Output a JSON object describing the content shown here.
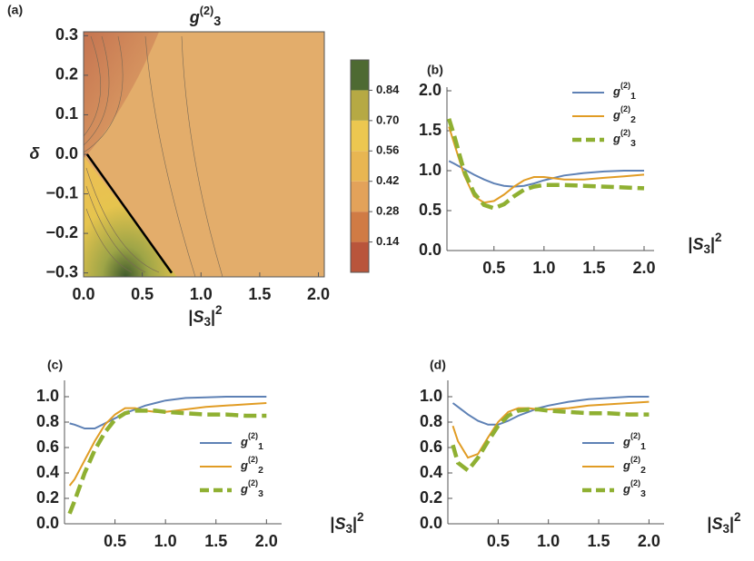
{
  "chart_data": [
    {
      "type": "contour",
      "panel": "(a)",
      "title": "g(2)3",
      "x_label": "|S3|2",
      "y_label": "δ",
      "xlim": [
        0,
        2.05
      ],
      "ylim": [
        -0.31,
        0.31
      ],
      "xticks": [
        {
          "value": 0,
          "label": "0.0"
        },
        0.5,
        {
          "value": 1,
          "label": "1.0"
        },
        1.5,
        {
          "value": 2,
          "label": "2.0"
        }
      ],
      "yticks": [
        {
          "value": -0.3,
          "label": "−0.3"
        },
        {
          "value": -0.2,
          "label": "−0.2"
        },
        {
          "value": -0.1,
          "label": "−0.1"
        },
        {
          "value": 0,
          "label": "0.0"
        },
        0.1,
        0.2,
        0.3
      ],
      "series": [
        {
          "color": "#000000",
          "x": [
            0.03,
            0.75
          ],
          "values": [
            0.0,
            -0.3
          ]
        }
      ],
      "colorbar": {
        "lim": [
          0,
          0.98
        ],
        "ticks": [
          0.14,
          {
            "value": 0.28,
            "label": "0.28"
          },
          0.42,
          0.56,
          {
            "value": 0.7,
            "label": "0.70"
          },
          0.84
        ],
        "colors": [
          "#b9553b",
          "#d07b45",
          "#e3a25a",
          "#e8b652",
          "#ecc750",
          "#b6a944",
          "#4e6a32"
        ]
      }
    },
    {
      "type": "line",
      "panel": "(b)",
      "x_label": "|S3|2",
      "legend": "upper right",
      "xlim": [
        0.03,
        2.1
      ],
      "ylim": [
        0,
        2.0
      ],
      "xticks": [
        0.5,
        {
          "value": 1,
          "label": "1.0"
        },
        1.5,
        {
          "value": 2,
          "label": "2.0"
        }
      ],
      "yticks": [
        {
          "value": 0,
          "label": "0.0"
        },
        0.5,
        {
          "value": 1,
          "label": "1.0"
        },
        1.5,
        {
          "value": 2,
          "label": "2.0"
        }
      ],
      "x": [
        0.05,
        0.1,
        0.2,
        0.3,
        0.4,
        0.5,
        0.6,
        0.7,
        0.8,
        0.9,
        1.0,
        1.2,
        1.4,
        1.6,
        1.8,
        2.0
      ],
      "series": [
        {
          "name": "g(2)1",
          "color": "#5e81b5",
          "dash": false,
          "values": [
            1.12,
            1.09,
            1.02,
            0.95,
            0.89,
            0.84,
            0.81,
            0.8,
            0.81,
            0.84,
            0.88,
            0.94,
            0.97,
            0.99,
            1.0,
            1.0
          ]
        },
        {
          "name": "g(2)2",
          "color": "#e19c24",
          "dash": false,
          "values": [
            1.55,
            1.35,
            0.95,
            0.68,
            0.6,
            0.62,
            0.7,
            0.8,
            0.88,
            0.92,
            0.92,
            0.89,
            0.89,
            0.91,
            0.93,
            0.95
          ]
        },
        {
          "name": "g(2)3",
          "color": "#8fb032",
          "dash": true,
          "values": [
            1.65,
            1.45,
            1.0,
            0.72,
            0.57,
            0.53,
            0.58,
            0.68,
            0.76,
            0.8,
            0.82,
            0.82,
            0.81,
            0.8,
            0.79,
            0.78
          ]
        }
      ]
    },
    {
      "type": "line",
      "panel": "(c)",
      "x_label": "|S3|2",
      "legend": "lower right",
      "xlim": [
        0,
        2.15
      ],
      "ylim": [
        0,
        1.1
      ],
      "xticks": [
        0.5,
        {
          "value": 1,
          "label": "1.0"
        },
        1.5,
        {
          "value": 2,
          "label": "2.0"
        }
      ],
      "yticks": [
        {
          "value": 0,
          "label": "0.0"
        },
        0.2,
        0.4,
        0.6,
        0.8,
        {
          "value": 1,
          "label": "1.0"
        }
      ],
      "x": [
        0.05,
        0.1,
        0.2,
        0.3,
        0.4,
        0.5,
        0.6,
        0.7,
        0.8,
        0.9,
        1.0,
        1.2,
        1.4,
        1.6,
        1.8,
        2.0
      ],
      "series": [
        {
          "name": "g(2)1",
          "color": "#5e81b5",
          "dash": false,
          "values": [
            0.79,
            0.78,
            0.75,
            0.75,
            0.79,
            0.83,
            0.87,
            0.9,
            0.93,
            0.95,
            0.97,
            0.99,
            0.995,
            1.0,
            1.0,
            1.0
          ]
        },
        {
          "name": "g(2)2",
          "color": "#e19c24",
          "dash": false,
          "values": [
            0.3,
            0.35,
            0.5,
            0.65,
            0.78,
            0.86,
            0.91,
            0.91,
            0.89,
            0.88,
            0.88,
            0.9,
            0.92,
            0.93,
            0.94,
            0.95
          ]
        },
        {
          "name": "g(2)3",
          "color": "#8fb032",
          "dash": true,
          "values": [
            0.08,
            0.18,
            0.4,
            0.58,
            0.72,
            0.82,
            0.87,
            0.89,
            0.89,
            0.89,
            0.88,
            0.87,
            0.86,
            0.86,
            0.85,
            0.85
          ]
        }
      ]
    },
    {
      "type": "line",
      "panel": "(d)",
      "x_label": "|S3|2",
      "legend": "lower right",
      "xlim": [
        0,
        2.15
      ],
      "ylim": [
        0,
        1.1
      ],
      "xticks": [
        0.5,
        {
          "value": 1,
          "label": "1.0"
        },
        1.5,
        {
          "value": 2,
          "label": "2.0"
        }
      ],
      "yticks": [
        {
          "value": 0,
          "label": "0.0"
        },
        0.2,
        0.4,
        0.6,
        0.8,
        {
          "value": 1,
          "label": "1.0"
        }
      ],
      "x": [
        0.05,
        0.1,
        0.2,
        0.3,
        0.4,
        0.5,
        0.6,
        0.7,
        0.8,
        0.9,
        1.0,
        1.2,
        1.4,
        1.6,
        1.8,
        2.0
      ],
      "series": [
        {
          "name": "g(2)1",
          "color": "#5e81b5",
          "dash": false,
          "values": [
            0.95,
            0.92,
            0.86,
            0.81,
            0.78,
            0.78,
            0.81,
            0.85,
            0.88,
            0.91,
            0.93,
            0.96,
            0.98,
            0.99,
            1.0,
            1.0
          ]
        },
        {
          "name": "g(2)2",
          "color": "#e19c24",
          "dash": false,
          "values": [
            0.77,
            0.65,
            0.52,
            0.55,
            0.68,
            0.8,
            0.88,
            0.91,
            0.91,
            0.9,
            0.9,
            0.91,
            0.93,
            0.94,
            0.95,
            0.96
          ]
        },
        {
          "name": "g(2)3",
          "color": "#8fb032",
          "dash": true,
          "values": [
            0.62,
            0.48,
            0.42,
            0.52,
            0.65,
            0.77,
            0.85,
            0.89,
            0.9,
            0.9,
            0.89,
            0.88,
            0.87,
            0.87,
            0.86,
            0.86
          ]
        }
      ]
    }
  ]
}
